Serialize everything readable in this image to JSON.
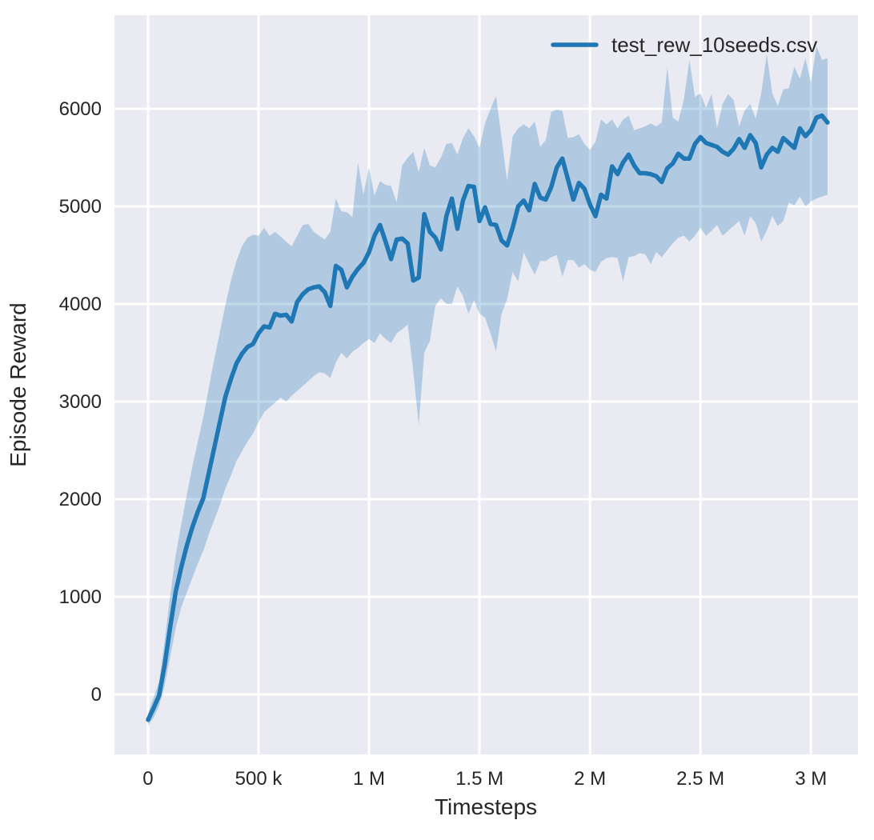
{
  "figure": {
    "background_color": "#ffffff",
    "plot_background_color": "#eaeaf2",
    "grid_color": "#ffffff",
    "text_color": "#262626"
  },
  "legend": {
    "entry": "test_rew_10seeds.csv",
    "swatch_color": "#1f77b4"
  },
  "chart_data": {
    "type": "line",
    "title": "",
    "xlabel": "Timesteps",
    "ylabel": "Episode Reward",
    "legend_position": "upper right",
    "grid": true,
    "line_color": "#1f77b4",
    "band_color": "#1f77b4",
    "band_opacity": 0.27,
    "xlim": [
      -152000,
      3213000
    ],
    "ylim": [
      -615,
      6959
    ],
    "x_ticks": {
      "values": [
        0,
        500000,
        1000000,
        1500000,
        2000000,
        2500000,
        3000000
      ],
      "labels": [
        "0",
        "500 k",
        "1 M",
        "1.5 M",
        "2 M",
        "2.5 M",
        "3 M"
      ]
    },
    "y_ticks": {
      "values": [
        0,
        1000,
        2000,
        3000,
        4000,
        5000,
        6000
      ],
      "labels": [
        "0",
        "1000",
        "2000",
        "3000",
        "4000",
        "5000",
        "6000"
      ]
    },
    "series": [
      {
        "name": "test_rew_10seeds.csv",
        "x": [
          0,
          25000,
          50000,
          75000,
          100000,
          125000,
          150000,
          175000,
          200000,
          225000,
          250000,
          275000,
          300000,
          325000,
          350000,
          375000,
          400000,
          425000,
          450000,
          475000,
          500000,
          525000,
          550000,
          575000,
          600000,
          625000,
          650000,
          675000,
          700000,
          725000,
          750000,
          775000,
          800000,
          825000,
          850000,
          875000,
          900000,
          925000,
          950000,
          975000,
          1000000,
          1025000,
          1050000,
          1075000,
          1100000,
          1125000,
          1150000,
          1175000,
          1200000,
          1225000,
          1250000,
          1275000,
          1300000,
          1325000,
          1350000,
          1375000,
          1400000,
          1425000,
          1450000,
          1475000,
          1500000,
          1525000,
          1550000,
          1575000,
          1600000,
          1625000,
          1650000,
          1675000,
          1700000,
          1725000,
          1750000,
          1775000,
          1800000,
          1825000,
          1850000,
          1875000,
          1900000,
          1925000,
          1950000,
          1975000,
          2000000,
          2025000,
          2050000,
          2075000,
          2100000,
          2125000,
          2150000,
          2175000,
          2200000,
          2225000,
          2250000,
          2275000,
          2300000,
          2325000,
          2350000,
          2375000,
          2400000,
          2425000,
          2450000,
          2475000,
          2500000,
          2525000,
          2550000,
          2575000,
          2600000,
          2625000,
          2650000,
          2675000,
          2700000,
          2725000,
          2750000,
          2775000,
          2800000,
          2825000,
          2850000,
          2875000,
          2900000,
          2925000,
          2950000,
          2975000,
          3000000,
          3025000,
          3050000,
          3075000
        ],
        "mean": [
          -260,
          -140,
          -10,
          300,
          690,
          1050,
          1300,
          1520,
          1710,
          1870,
          2010,
          2270,
          2530,
          2790,
          3050,
          3230,
          3390,
          3490,
          3560,
          3590,
          3700,
          3770,
          3760,
          3900,
          3880,
          3890,
          3820,
          4020,
          4100,
          4150,
          4170,
          4180,
          4120,
          3980,
          4390,
          4350,
          4170,
          4280,
          4360,
          4420,
          4530,
          4700,
          4810,
          4640,
          4460,
          4660,
          4670,
          4620,
          4240,
          4270,
          4920,
          4740,
          4680,
          4560,
          4900,
          5080,
          4770,
          5060,
          5210,
          5200,
          4850,
          4990,
          4820,
          4810,
          4650,
          4600,
          4780,
          5000,
          5060,
          4960,
          5230,
          5090,
          5070,
          5200,
          5400,
          5490,
          5280,
          5070,
          5240,
          5180,
          5020,
          4900,
          5120,
          5080,
          5410,
          5330,
          5450,
          5530,
          5420,
          5340,
          5340,
          5330,
          5310,
          5250,
          5390,
          5440,
          5540,
          5490,
          5490,
          5640,
          5710,
          5650,
          5630,
          5610,
          5560,
          5530,
          5590,
          5690,
          5600,
          5730,
          5650,
          5400,
          5530,
          5600,
          5560,
          5700,
          5650,
          5600,
          5800,
          5720,
          5780,
          5910,
          5930,
          5860
        ],
        "lower": [
          -320,
          -240,
          -120,
          90,
          380,
          680,
          890,
          1040,
          1190,
          1340,
          1470,
          1640,
          1790,
          1940,
          2110,
          2240,
          2390,
          2490,
          2590,
          2670,
          2790,
          2890,
          2940,
          2990,
          3040,
          3000,
          3060,
          3110,
          3160,
          3210,
          3260,
          3300,
          3290,
          3240,
          3400,
          3500,
          3440,
          3510,
          3550,
          3600,
          3640,
          3600,
          3700,
          3640,
          3600,
          3700,
          3740,
          3790,
          3310,
          2760,
          3500,
          3620,
          3980,
          4060,
          4000,
          4000,
          4180,
          4080,
          3900,
          4040,
          3900,
          3860,
          3700,
          3510,
          3900,
          4050,
          4330,
          4230,
          4530,
          4410,
          4300,
          4440,
          4440,
          4480,
          4500,
          4280,
          4450,
          4450,
          4370,
          4410,
          4350,
          4330,
          4430,
          4470,
          4480,
          4470,
          4230,
          4480,
          4490,
          4520,
          4510,
          4410,
          4530,
          4480,
          4550,
          4620,
          4680,
          4700,
          4640,
          4700,
          4780,
          4700,
          4750,
          4810,
          4700,
          4750,
          4800,
          4850,
          4700,
          4900,
          4830,
          4640,
          4750,
          4900,
          4800,
          4850,
          5040,
          5010,
          5100,
          5000,
          5050,
          5080,
          5100,
          5120
        ],
        "upper": [
          -190,
          -30,
          130,
          550,
          1010,
          1430,
          1740,
          2040,
          2330,
          2590,
          2840,
          3140,
          3440,
          3710,
          3990,
          4240,
          4440,
          4590,
          4680,
          4710,
          4700,
          4780,
          4700,
          4740,
          4690,
          4640,
          4590,
          4700,
          4810,
          4820,
          4740,
          4700,
          4660,
          4740,
          5080,
          4950,
          4940,
          4890,
          5450,
          5120,
          5400,
          5110,
          5260,
          5220,
          5210,
          5040,
          5420,
          5500,
          5560,
          5350,
          5600,
          5420,
          5400,
          5500,
          5640,
          5650,
          5530,
          5700,
          5800,
          5720,
          5600,
          5850,
          6000,
          6130,
          5700,
          5260,
          5720,
          5800,
          5840,
          5800,
          5870,
          5610,
          5680,
          5970,
          5990,
          5980,
          5700,
          5710,
          5740,
          5640,
          5580,
          5660,
          5890,
          5840,
          5890,
          5800,
          5890,
          5930,
          5780,
          5800,
          5820,
          5850,
          5820,
          5860,
          6430,
          5910,
          5870,
          6100,
          6500,
          6120,
          6160,
          6010,
          6150,
          5800,
          6050,
          6150,
          6090,
          5820,
          5980,
          6050,
          5900,
          6160,
          6560,
          6160,
          6030,
          6200,
          6210,
          6430,
          6310,
          6520,
          6270,
          6640,
          6500,
          6520
        ]
      }
    ]
  }
}
